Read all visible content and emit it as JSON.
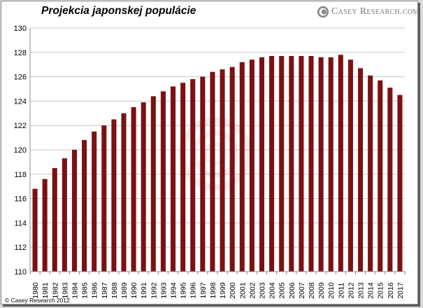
{
  "title": "Projekcia japonskej populácie",
  "brand": "Casey Research.com",
  "copyright": "© Casey Research 2012",
  "colors": {
    "bar": "#7b1113",
    "grid": "#c8c8c8",
    "axis": "#8c8c8c",
    "text": "#000000"
  },
  "chart_data": {
    "type": "bar",
    "title": "Projekcia japonskej populácie",
    "xlabel": "",
    "ylabel": "",
    "ylim": [
      110,
      130
    ],
    "yticks": [
      110,
      112,
      114,
      116,
      118,
      120,
      122,
      124,
      126,
      128,
      130
    ],
    "grid": true,
    "legend": "none",
    "categories": [
      "1980",
      "1981",
      "1982",
      "1983",
      "1984",
      "1985",
      "1986",
      "1987",
      "1988",
      "1989",
      "1990",
      "1991",
      "1992",
      "1993",
      "1994",
      "1995",
      "1996",
      "1997",
      "1998",
      "1999",
      "2000",
      "2001",
      "2002",
      "2003",
      "2004",
      "2005",
      "2006",
      "2007",
      "2008",
      "2009",
      "2010",
      "2011",
      "2012",
      "2013",
      "2014",
      "2015",
      "2016",
      "2017"
    ],
    "values": [
      116.8,
      117.6,
      118.5,
      119.3,
      120.0,
      120.8,
      121.5,
      122.0,
      122.5,
      123.0,
      123.5,
      123.9,
      124.4,
      124.8,
      125.2,
      125.5,
      125.8,
      126.0,
      126.4,
      126.6,
      126.8,
      127.2,
      127.4,
      127.6,
      127.7,
      127.7,
      127.7,
      127.7,
      127.7,
      127.6,
      127.6,
      127.8,
      127.4,
      126.7,
      126.1,
      125.7,
      125.1,
      124.5
    ]
  }
}
